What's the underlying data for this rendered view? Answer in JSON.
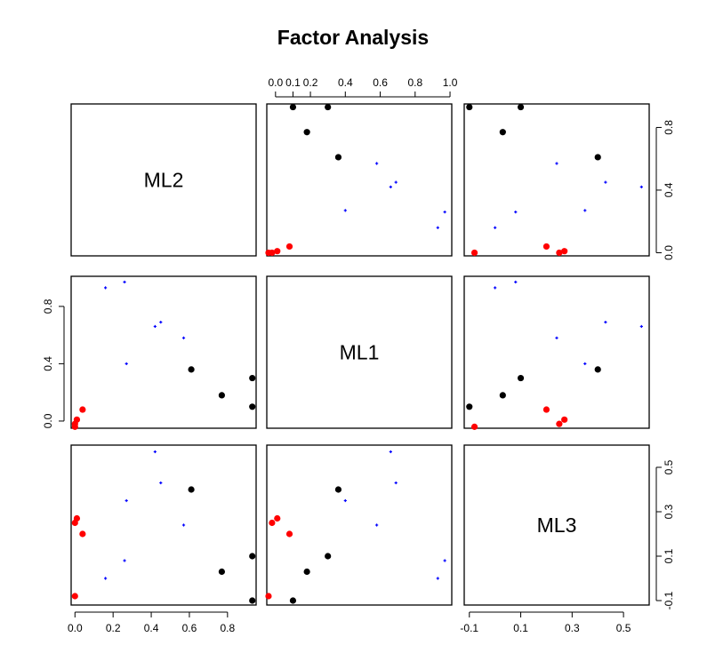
{
  "chart_data": {
    "type": "scatter-matrix",
    "title": "Factor Analysis",
    "variables": [
      "ML2",
      "ML1",
      "ML3"
    ],
    "axes": {
      "ML2": {
        "lim": [
          -0.02,
          0.95
        ],
        "ticks": [
          0.0,
          0.2,
          0.4,
          0.6,
          0.8
        ],
        "tick_labels": [
          "0.0",
          "0.2",
          "0.4",
          "0.6",
          "0.8"
        ]
      },
      "ML1": {
        "lim": [
          -0.05,
          1.01
        ],
        "ticks": [
          0.0,
          0.2,
          0.4,
          0.6,
          0.8,
          1.0
        ],
        "tick_labels": [
          "0.0",
          "0.2",
          "0.4",
          "0.6",
          "0.8",
          "1.0"
        ],
        "top_ticks": [
          0.0,
          0.1,
          0.2,
          0.4,
          0.6,
          0.8,
          1.0
        ],
        "top_tick_labels": [
          "0.0",
          "0.1",
          "0.2",
          "0.4",
          "0.6",
          "0.8",
          "1.0"
        ],
        "left_ticks": [
          0.0,
          0.4,
          0.8
        ],
        "left_tick_labels": [
          "0.0",
          "0.4",
          "0.8"
        ]
      },
      "ML3": {
        "lim": [
          -0.12,
          0.6
        ],
        "ticks": [
          -0.1,
          0.1,
          0.3,
          0.5
        ],
        "tick_labels": [
          "-0.1",
          "0.1",
          "0.3",
          "0.5"
        ],
        "bottom_ticks": [
          -0.1,
          0.1,
          0.3,
          0.5
        ],
        "bottom_tick_labels": [
          "-0.1",
          "0.1",
          "0.3",
          "0.5"
        ]
      }
    },
    "series": [
      {
        "name": "group-black",
        "color": "#000000",
        "marker": "filled-circle",
        "points": [
          {
            "ML2": 0.93,
            "ML1": 0.1,
            "ML3": -0.1
          },
          {
            "ML2": 0.93,
            "ML1": 0.3,
            "ML3": 0.1
          },
          {
            "ML2": 0.77,
            "ML1": 0.18,
            "ML3": 0.03
          },
          {
            "ML2": 0.61,
            "ML1": 0.36,
            "ML3": 0.4
          }
        ]
      },
      {
        "name": "group-blue",
        "color": "#0000ff",
        "marker": "small-plus",
        "points": [
          {
            "ML2": 0.57,
            "ML1": 0.58,
            "ML3": 0.24
          },
          {
            "ML2": 0.45,
            "ML1": 0.69,
            "ML3": 0.43
          },
          {
            "ML2": 0.42,
            "ML1": 0.66,
            "ML3": 0.57
          },
          {
            "ML2": 0.27,
            "ML1": 0.4,
            "ML3": 0.35
          },
          {
            "ML2": 0.26,
            "ML1": 0.97,
            "ML3": 0.08
          },
          {
            "ML2": 0.16,
            "ML1": 0.93,
            "ML3": 0.0
          }
        ]
      },
      {
        "name": "group-red",
        "color": "#ff0000",
        "marker": "filled-circle",
        "points": [
          {
            "ML2": 0.04,
            "ML1": 0.08,
            "ML3": 0.2
          },
          {
            "ML2": 0.01,
            "ML1": 0.01,
            "ML3": 0.27
          },
          {
            "ML2": 0.0,
            "ML1": -0.02,
            "ML3": 0.25
          },
          {
            "ML2": 0.0,
            "ML1": -0.04,
            "ML3": -0.08
          }
        ]
      }
    ]
  }
}
